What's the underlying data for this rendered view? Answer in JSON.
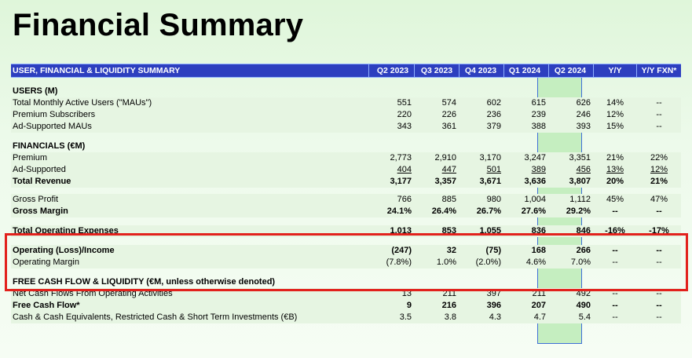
{
  "title": "Financial Summary",
  "table": {
    "header_label": "USER, FINANCIAL & LIQUIDITY SUMMARY",
    "columns": [
      "Q2 2023",
      "Q3 2023",
      "Q4 2023",
      "Q1 2024",
      "Q2 2024",
      "Y/Y",
      "Y/Y FXN*"
    ],
    "sections": [
      {
        "heading": "USERS (M)",
        "rows": [
          {
            "label": "Total Monthly Active Users (\"MAUs\")",
            "values": [
              "551",
              "574",
              "602",
              "615",
              "626",
              "14%",
              "--"
            ]
          },
          {
            "label": "Premium Subscribers",
            "values": [
              "220",
              "226",
              "236",
              "239",
              "246",
              "12%",
              "--"
            ]
          },
          {
            "label": "Ad-Supported MAUs",
            "values": [
              "343",
              "361",
              "379",
              "388",
              "393",
              "15%",
              "--"
            ]
          }
        ]
      },
      {
        "heading": "FINANCIALS (€M)",
        "rows": [
          {
            "label": "Premium",
            "values": [
              "2,773",
              "2,910",
              "3,170",
              "3,247",
              "3,351",
              "21%",
              "22%"
            ]
          },
          {
            "label": "Ad-Supported",
            "values": [
              "404",
              "447",
              "501",
              "389",
              "456",
              "13%",
              "12%"
            ]
          },
          {
            "label": "Total Revenue",
            "values": [
              "3,177",
              "3,357",
              "3,671",
              "3,636",
              "3,807",
              "20%",
              "21%"
            ]
          },
          {
            "label": "Gross Profit",
            "values": [
              "766",
              "885",
              "980",
              "1,004",
              "1,112",
              "45%",
              "47%"
            ]
          },
          {
            "label": "Gross Margin",
            "values": [
              "24.1%",
              "26.4%",
              "26.7%",
              "27.6%",
              "29.2%",
              "--",
              "--"
            ]
          },
          {
            "label": "Total Operating Expenses",
            "values": [
              "1,013",
              "853",
              "1,055",
              "836",
              "846",
              "-16%",
              "-17%"
            ]
          },
          {
            "label": "Operating (Loss)/Income",
            "values": [
              "(247)",
              "32",
              "(75)",
              "168",
              "266",
              "--",
              "--"
            ]
          },
          {
            "label": "Operating Margin",
            "values": [
              "(7.8%)",
              "1.0%",
              "(2.0%)",
              "4.6%",
              "7.0%",
              "--",
              "--"
            ]
          }
        ]
      },
      {
        "heading": "FREE CASH FLOW & LIQUIDITY (€M, unless otherwise denoted)",
        "rows": [
          {
            "label": "Net Cash Flows From Operating Activities",
            "values": [
              "13",
              "211",
              "397",
              "211",
              "492",
              "--",
              "--"
            ]
          },
          {
            "label": "Free Cash Flow*",
            "values": [
              "9",
              "216",
              "396",
              "207",
              "490",
              "--",
              "--"
            ]
          },
          {
            "label": "Cash & Cash Equivalents, Restricted Cash & Short Term Investments (€B)",
            "values": [
              "3.5",
              "3.8",
              "4.3",
              "4.7",
              "5.4",
              "--",
              "--"
            ]
          }
        ]
      }
    ]
  }
}
